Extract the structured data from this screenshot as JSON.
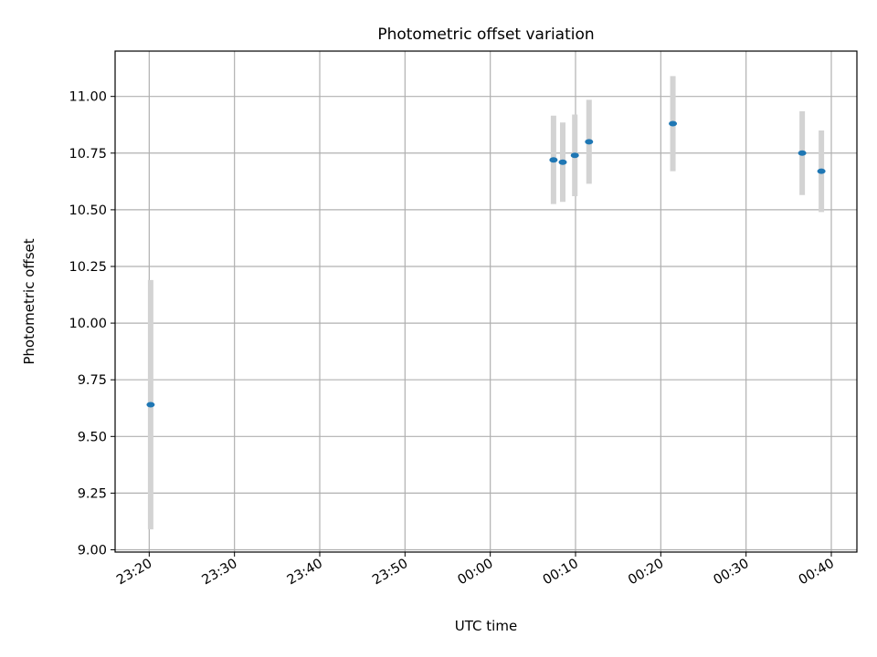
{
  "chart_data": {
    "type": "scatter",
    "title": "Photometric offset variation",
    "xlabel": "UTC time",
    "ylabel": "Photometric offset",
    "grid": true,
    "x_tick_labels": [
      "23:20",
      "23:30",
      "23:40",
      "23:50",
      "00:00",
      "00:10",
      "00:20",
      "00:30",
      "00:40"
    ],
    "y_tick_labels": [
      "9.00",
      "9.25",
      "9.50",
      "9.75",
      "10.00",
      "10.25",
      "10.50",
      "10.75",
      "11.00"
    ],
    "y_ticks": [
      9.0,
      9.25,
      9.5,
      9.75,
      10.0,
      10.25,
      10.5,
      10.75,
      11.0
    ],
    "xlim": [
      "23:16",
      "00:43"
    ],
    "ylim": [
      8.99,
      11.2
    ],
    "series": [
      {
        "marker_color": "#1f77b4",
        "errorbar_color": "#d3d3d3",
        "x": [
          "23:20:10",
          "00:07:25",
          "00:08:30",
          "00:09:55",
          "00:11:35",
          "00:21:25",
          "00:36:35",
          "00:38:50"
        ],
        "y": [
          9.64,
          10.72,
          10.71,
          10.74,
          10.8,
          10.88,
          10.75,
          10.67
        ],
        "yerr": [
          0.55,
          0.195,
          0.175,
          0.18,
          0.185,
          0.21,
          0.185,
          0.18
        ]
      }
    ]
  }
}
